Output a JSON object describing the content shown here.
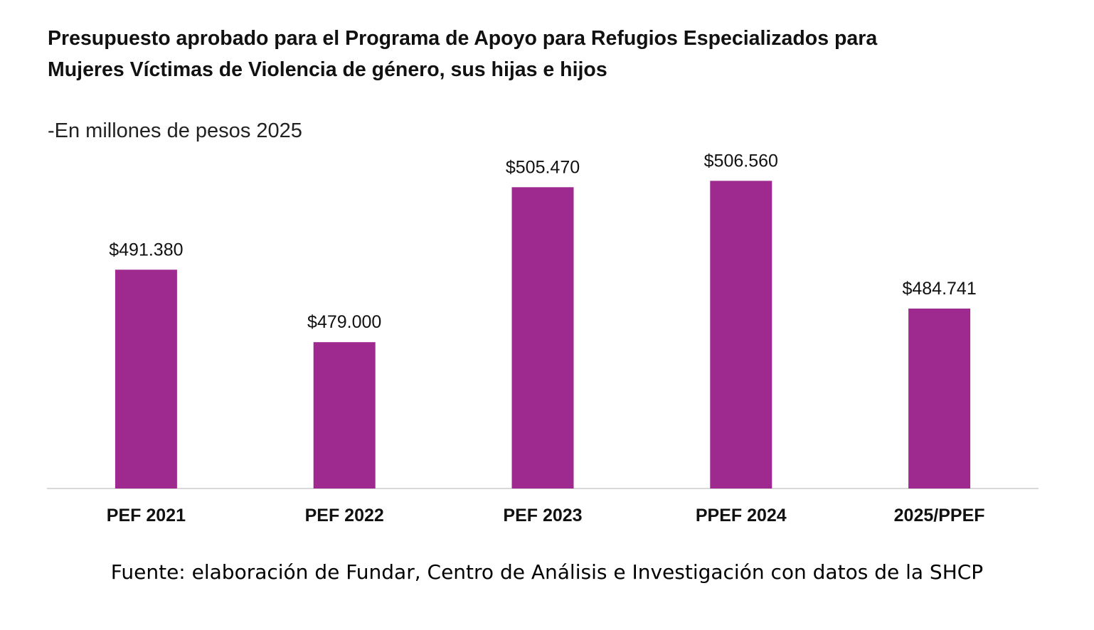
{
  "chart_data": {
    "type": "bar",
    "title": "Presupuesto aprobado para el Programa de Apoyo para Refugios Especializados para Mujeres Víctimas de Violencia de género, sus hijas e hijos",
    "subtitle": "-En millones de pesos 2025",
    "categories": [
      "PEF 2021",
      "PEF 2022",
      "PEF 2023",
      "PPEF 2024",
      "2025/PPEF"
    ],
    "values": [
      491.38,
      479.0,
      505.47,
      506.56,
      484.741
    ],
    "data_labels": [
      "$491.380",
      "$479.000",
      "$505.470",
      "$506.560",
      "$484.741"
    ],
    "xlabel": "",
    "ylabel": "",
    "ylim": [
      454,
      510
    ],
    "grid": false,
    "legend": "none",
    "bar_color": "#9e2a90",
    "axis_color": "#d9d9d9"
  },
  "source_note": "Fuente: elaboración de Fundar, Centro de Análisis e Investigación con datos de la SHCP"
}
